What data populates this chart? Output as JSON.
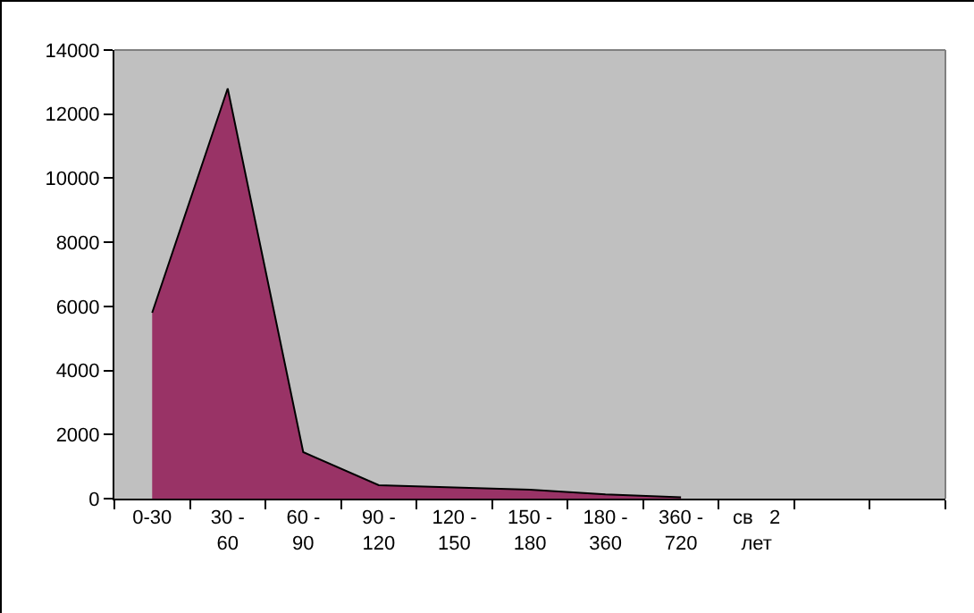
{
  "chart_data": {
    "type": "area",
    "categories": [
      "0-30",
      "30 -\n60",
      "60 -\n90",
      "90 -\n120",
      "120 -\n150",
      "150 -\n180",
      "180 -\n360",
      "360 -\n720",
      "св   2\nлет",
      null,
      null
    ],
    "series": [
      {
        "color": "#993366",
        "values": [
          5800,
          12800,
          1450,
          420,
          350,
          280,
          130,
          40,
          null,
          null,
          null
        ]
      }
    ],
    "ylim": [
      0,
      14000
    ],
    "yticks": [
      0,
      2000,
      4000,
      6000,
      8000,
      10000,
      12000,
      14000
    ],
    "grid": false
  }
}
